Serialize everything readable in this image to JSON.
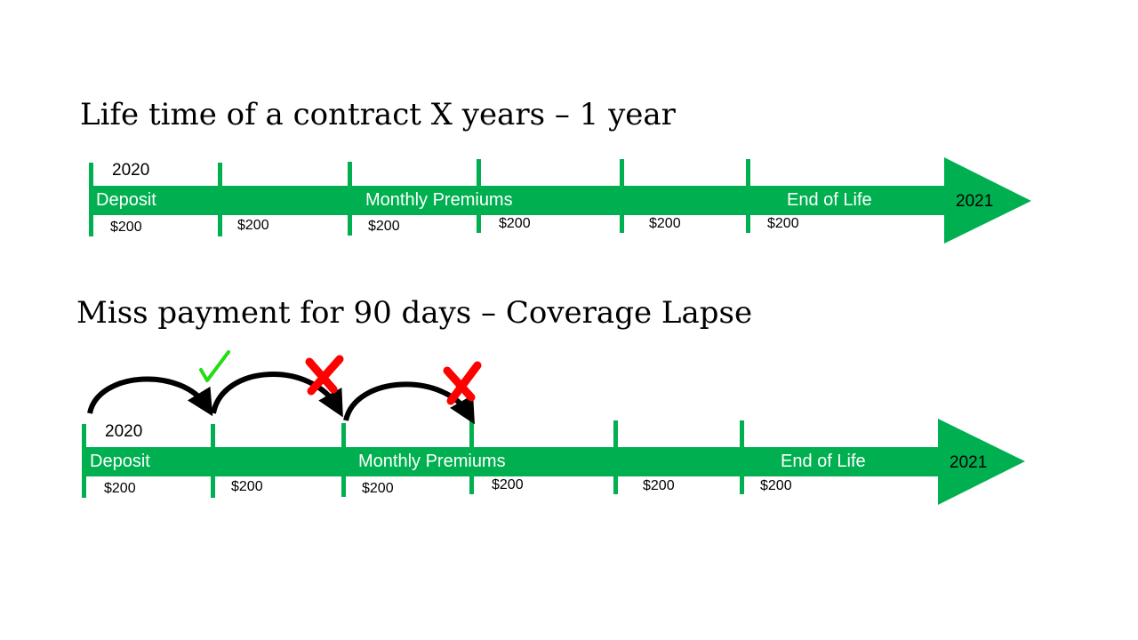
{
  "slide": {
    "accent_color": "#00b050",
    "check_color": "#22dd11",
    "cross_color": "#ff0000"
  },
  "timeline1": {
    "heading": "Life time of a contract X years – 1 year",
    "start_year": "2020",
    "end_year": "2021",
    "labels": {
      "deposit": "Deposit",
      "premiums": "Monthly Premiums",
      "end": "End of Life"
    },
    "payments": [
      "$200",
      "$200",
      "$200",
      "$200",
      "$200",
      "$200"
    ]
  },
  "timeline2": {
    "heading": "Miss payment for 90 days – Coverage Lapse",
    "start_year": "2020",
    "end_year": "2021",
    "labels": {
      "deposit": "Deposit",
      "premiums": "Monthly Premiums",
      "end": "End of Life"
    },
    "payments": [
      "$200",
      "$200",
      "$200",
      "$200",
      "$200",
      "$200"
    ],
    "transitions": [
      {
        "status": "paid",
        "status_icon": "check-icon"
      },
      {
        "status": "missed",
        "status_icon": "cross-icon"
      },
      {
        "status": "missed",
        "status_icon": "cross-icon"
      }
    ]
  }
}
